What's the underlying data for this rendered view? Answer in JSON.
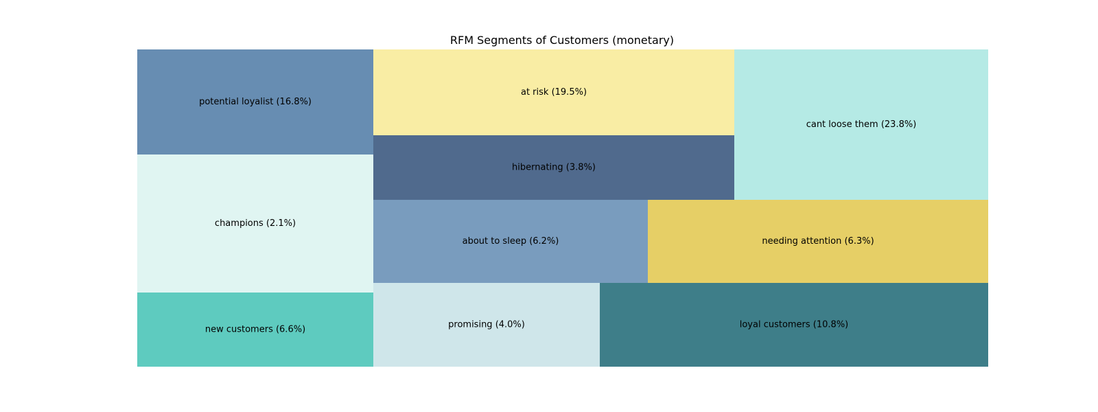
{
  "chart_data": {
    "type": "treemap",
    "title": "RFM Segments of Customers (monetary)",
    "tiles": [
      {
        "name": "potential loyalist",
        "label": "potential loyalist (16.8%)",
        "value": 16.8,
        "color": "#678db2"
      },
      {
        "name": "champions",
        "label": "champions (2.1%)",
        "value": 2.1,
        "color": "#e0f5f2"
      },
      {
        "name": "new customers",
        "label": "new customers (6.6%)",
        "value": 6.6,
        "color": "#5ecbbf"
      },
      {
        "name": "at risk",
        "label": "at risk (19.5%)",
        "value": 19.5,
        "color": "#f9eda4"
      },
      {
        "name": "hibernating",
        "label": "hibernating (3.8%)",
        "value": 3.8,
        "color": "#506a8d"
      },
      {
        "name": "cant loose them",
        "label": "cant loose them (23.8%)",
        "value": 23.8,
        "color": "#b5eae5"
      },
      {
        "name": "about to sleep",
        "label": "about to sleep (6.2%)",
        "value": 6.2,
        "color": "#799cbe"
      },
      {
        "name": "needing attention",
        "label": "needing attention (6.3%)",
        "value": 6.3,
        "color": "#e6cf66"
      },
      {
        "name": "promising",
        "label": "promising (4.0%)",
        "value": 4.0,
        "color": "#cfe6ea"
      },
      {
        "name": "loyal customers",
        "label": "loyal customers (10.8%)",
        "value": 10.8,
        "color": "#3e7e89"
      }
    ]
  }
}
